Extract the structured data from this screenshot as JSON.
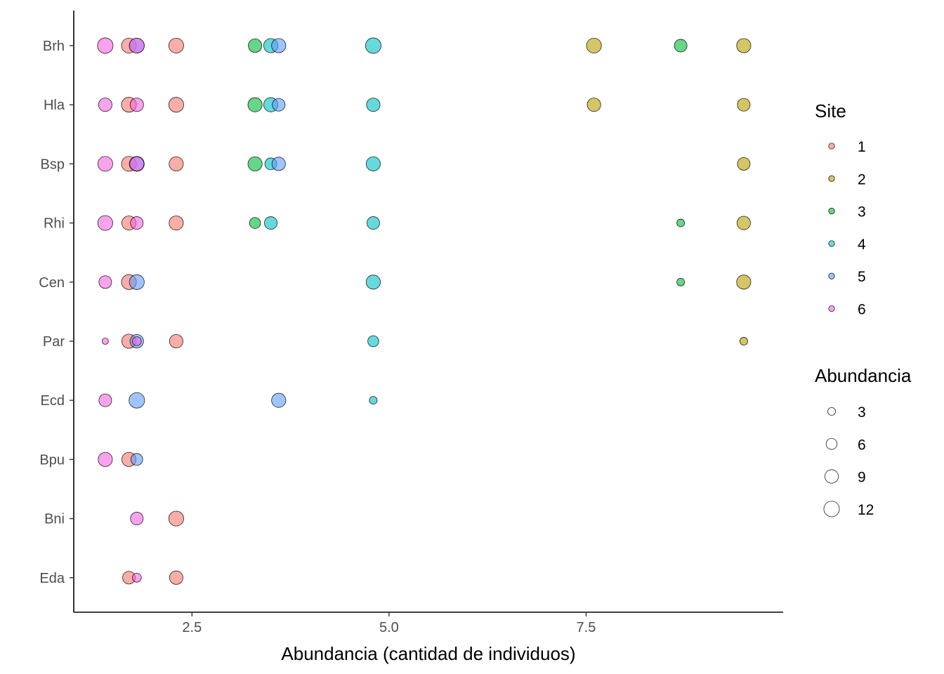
{
  "chart_data": {
    "type": "scatter",
    "title": "",
    "xlabel": "Abundancia (cantidad de individuos)",
    "ylabel": "",
    "xlim": [
      1.0,
      10.0
    ],
    "x_ticks": [
      2.5,
      5.0,
      7.5
    ],
    "x_tick_labels": [
      "2.5",
      "5.0",
      "7.5"
    ],
    "y_categories": [
      "Brh",
      "Hla",
      "Bsp",
      "Rhi",
      "Cen",
      "Par",
      "Ecd",
      "Bpu",
      "Bni",
      "Eda"
    ],
    "grid": false,
    "point_alpha": 0.6,
    "legend_color": {
      "title": "Site",
      "placement": "right",
      "entries": [
        {
          "label": "1",
          "color": "#F8766D"
        },
        {
          "label": "2",
          "color": "#B79F00"
        },
        {
          "label": "3",
          "color": "#00BA38"
        },
        {
          "label": "4",
          "color": "#00BFC4"
        },
        {
          "label": "5",
          "color": "#619CFF"
        },
        {
          "label": "6",
          "color": "#F564E3"
        }
      ]
    },
    "legend_size": {
      "title": "Abundancia",
      "placement": "right",
      "entries": [
        {
          "label": "3",
          "value": 3
        },
        {
          "label": "6",
          "value": 6
        },
        {
          "label": "9",
          "value": 9
        },
        {
          "label": "12",
          "value": 12
        }
      ]
    },
    "series": [
      {
        "site": "1",
        "points": [
          {
            "cat": "Brh",
            "x": 1.7,
            "size": 11
          },
          {
            "cat": "Brh",
            "x": 2.3,
            "size": 11
          },
          {
            "cat": "Hla",
            "x": 1.7,
            "size": 11
          },
          {
            "cat": "Hla",
            "x": 2.3,
            "size": 11
          },
          {
            "cat": "Bsp",
            "x": 1.7,
            "size": 11
          },
          {
            "cat": "Bsp",
            "x": 2.3,
            "size": 10
          },
          {
            "cat": "Rhi",
            "x": 1.7,
            "size": 10
          },
          {
            "cat": "Rhi",
            "x": 2.3,
            "size": 10
          },
          {
            "cat": "Cen",
            "x": 1.7,
            "size": 11
          },
          {
            "cat": "Par",
            "x": 1.7,
            "size": 10
          },
          {
            "cat": "Par",
            "x": 2.3,
            "size": 9
          },
          {
            "cat": "Bpu",
            "x": 1.7,
            "size": 10
          },
          {
            "cat": "Bni",
            "x": 2.3,
            "size": 11
          },
          {
            "cat": "Eda",
            "x": 1.7,
            "size": 8
          },
          {
            "cat": "Eda",
            "x": 2.3,
            "size": 9
          }
        ]
      },
      {
        "site": "2",
        "points": [
          {
            "cat": "Brh",
            "x": 7.6,
            "size": 11
          },
          {
            "cat": "Brh",
            "x": 9.5,
            "size": 10
          },
          {
            "cat": "Hla",
            "x": 7.6,
            "size": 9
          },
          {
            "cat": "Hla",
            "x": 9.5,
            "size": 8
          },
          {
            "cat": "Bsp",
            "x": 9.5,
            "size": 8
          },
          {
            "cat": "Rhi",
            "x": 9.5,
            "size": 9
          },
          {
            "cat": "Cen",
            "x": 9.5,
            "size": 10
          },
          {
            "cat": "Par",
            "x": 9.5,
            "size": 3
          }
        ]
      },
      {
        "site": "3",
        "points": [
          {
            "cat": "Brh",
            "x": 3.3,
            "size": 9
          },
          {
            "cat": "Brh",
            "x": 8.7,
            "size": 8
          },
          {
            "cat": "Hla",
            "x": 3.3,
            "size": 10
          },
          {
            "cat": "Bsp",
            "x": 3.3,
            "size": 10
          },
          {
            "cat": "Rhi",
            "x": 3.3,
            "size": 6
          },
          {
            "cat": "Rhi",
            "x": 8.7,
            "size": 3
          },
          {
            "cat": "Cen",
            "x": 8.7,
            "size": 3
          }
        ]
      },
      {
        "site": "4",
        "points": [
          {
            "cat": "Brh",
            "x": 3.5,
            "size": 10
          },
          {
            "cat": "Brh",
            "x": 4.8,
            "size": 12
          },
          {
            "cat": "Hla",
            "x": 3.5,
            "size": 10
          },
          {
            "cat": "Hla",
            "x": 4.8,
            "size": 9
          },
          {
            "cat": "Bsp",
            "x": 3.5,
            "size": 7
          },
          {
            "cat": "Bsp",
            "x": 4.8,
            "size": 10
          },
          {
            "cat": "Rhi",
            "x": 3.5,
            "size": 8
          },
          {
            "cat": "Rhi",
            "x": 4.8,
            "size": 8
          },
          {
            "cat": "Cen",
            "x": 4.8,
            "size": 10
          },
          {
            "cat": "Par",
            "x": 4.8,
            "size": 6
          },
          {
            "cat": "Ecd",
            "x": 4.8,
            "size": 3
          }
        ]
      },
      {
        "site": "5",
        "points": [
          {
            "cat": "Brh",
            "x": 1.8,
            "size": 11
          },
          {
            "cat": "Brh",
            "x": 3.6,
            "size": 10
          },
          {
            "cat": "Hla",
            "x": 3.6,
            "size": 8
          },
          {
            "cat": "Bsp",
            "x": 1.8,
            "size": 11
          },
          {
            "cat": "Bsp",
            "x": 3.6,
            "size": 9
          },
          {
            "cat": "Cen",
            "x": 1.8,
            "size": 11
          },
          {
            "cat": "Par",
            "x": 1.8,
            "size": 9
          },
          {
            "cat": "Ecd",
            "x": 1.8,
            "size": 12
          },
          {
            "cat": "Ecd",
            "x": 3.6,
            "size": 10
          },
          {
            "cat": "Bpu",
            "x": 1.8,
            "size": 7
          }
        ]
      },
      {
        "site": "6",
        "points": [
          {
            "cat": "Brh",
            "x": 1.4,
            "size": 12
          },
          {
            "cat": "Brh",
            "x": 1.8,
            "size": 11
          },
          {
            "cat": "Hla",
            "x": 1.4,
            "size": 9
          },
          {
            "cat": "Hla",
            "x": 1.8,
            "size": 9
          },
          {
            "cat": "Bsp",
            "x": 1.4,
            "size": 11
          },
          {
            "cat": "Bsp",
            "x": 1.8,
            "size": 10
          },
          {
            "cat": "Rhi",
            "x": 1.4,
            "size": 11
          },
          {
            "cat": "Rhi",
            "x": 1.8,
            "size": 8
          },
          {
            "cat": "Cen",
            "x": 1.4,
            "size": 8
          },
          {
            "cat": "Par",
            "x": 1.4,
            "size": 2
          },
          {
            "cat": "Par",
            "x": 1.8,
            "size": 4
          },
          {
            "cat": "Ecd",
            "x": 1.4,
            "size": 8
          },
          {
            "cat": "Bpu",
            "x": 1.4,
            "size": 10
          },
          {
            "cat": "Bni",
            "x": 1.8,
            "size": 8
          },
          {
            "cat": "Eda",
            "x": 1.8,
            "size": 4
          }
        ]
      }
    ]
  }
}
